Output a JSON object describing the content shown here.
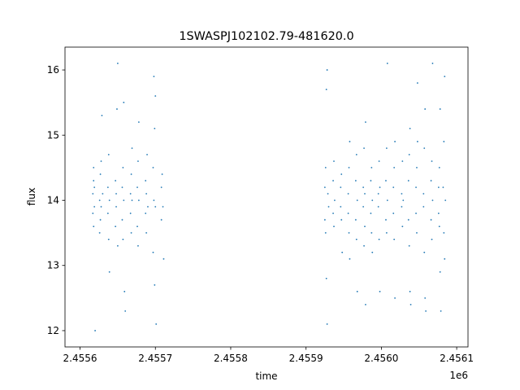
{
  "chart_data": {
    "type": "scatter",
    "title": "1SWASPJ102102.79-481620.0",
    "xlabel": "time",
    "ylabel": "flux",
    "x_offset_label": "1e6",
    "xlim": [
      2455580,
      2456115
    ],
    "ylim": [
      11.75,
      16.35
    ],
    "x_ticks": [
      2455600,
      2455700,
      2455800,
      2455900,
      2456000,
      2456100
    ],
    "x_tick_labels": [
      "2.4556",
      "2.4557",
      "2.4558",
      "2.4559",
      "2.4560",
      "2.4561"
    ],
    "y_ticks": [
      12,
      13,
      14,
      15,
      16
    ],
    "y_tick_labels": [
      "12",
      "13",
      "14",
      "15",
      "16"
    ],
    "grid": false,
    "marker_color": "#1f77b4",
    "series": [
      {
        "points": [
          [
            2455617,
            14.1
          ],
          [
            2455617,
            13.8
          ],
          [
            2455618,
            14.3
          ],
          [
            2455618,
            13.6
          ],
          [
            2455618,
            14.5
          ],
          [
            2455619,
            13.9
          ],
          [
            2455619,
            14.2
          ],
          [
            2455620,
            12.0
          ],
          [
            2455626,
            14.0
          ],
          [
            2455626,
            13.5
          ],
          [
            2455627,
            14.4
          ],
          [
            2455627,
            13.7
          ],
          [
            2455628,
            14.6
          ],
          [
            2455628,
            13.9
          ],
          [
            2455629,
            15.3
          ],
          [
            2455630,
            14.1
          ],
          [
            2455637,
            13.8
          ],
          [
            2455637,
            14.2
          ],
          [
            2455638,
            13.4
          ],
          [
            2455638,
            14.7
          ],
          [
            2455639,
            14.0
          ],
          [
            2455639,
            12.9
          ],
          [
            2455647,
            14.3
          ],
          [
            2455647,
            13.6
          ],
          [
            2455648,
            14.1
          ],
          [
            2455648,
            13.9
          ],
          [
            2455649,
            15.4
          ],
          [
            2455650,
            16.1
          ],
          [
            2455650,
            13.3
          ],
          [
            2455656,
            14.2
          ],
          [
            2455656,
            13.7
          ],
          [
            2455657,
            14.5
          ],
          [
            2455657,
            13.4
          ],
          [
            2455658,
            15.5
          ],
          [
            2455658,
            14.0
          ],
          [
            2455659,
            12.6
          ],
          [
            2455660,
            12.3
          ],
          [
            2455667,
            14.1
          ],
          [
            2455667,
            13.8
          ],
          [
            2455668,
            14.4
          ],
          [
            2455668,
            13.5
          ],
          [
            2455669,
            14.8
          ],
          [
            2455669,
            14.0
          ],
          [
            2455676,
            14.2
          ],
          [
            2455676,
            13.6
          ],
          [
            2455677,
            14.6
          ],
          [
            2455677,
            13.3
          ],
          [
            2455678,
            15.2
          ],
          [
            2455678,
            14.0
          ],
          [
            2455687,
            14.3
          ],
          [
            2455687,
            13.8
          ],
          [
            2455688,
            14.1
          ],
          [
            2455688,
            13.5
          ],
          [
            2455689,
            14.7
          ],
          [
            2455690,
            13.9
          ],
          [
            2455697,
            14.5
          ],
          [
            2455697,
            13.2
          ],
          [
            2455698,
            15.9
          ],
          [
            2455698,
            14.0
          ],
          [
            2455699,
            15.1
          ],
          [
            2455699,
            12.7
          ],
          [
            2455700,
            13.9
          ],
          [
            2455700,
            15.6
          ],
          [
            2455701,
            12.1
          ],
          [
            2455708,
            14.2
          ],
          [
            2455708,
            13.7
          ],
          [
            2455709,
            14.4
          ],
          [
            2455710,
            13.9
          ],
          [
            2455711,
            13.1
          ],
          [
            2455925,
            14.2
          ],
          [
            2455925,
            13.7
          ],
          [
            2455926,
            14.5
          ],
          [
            2455926,
            13.5
          ],
          [
            2455927,
            15.7
          ],
          [
            2455927,
            12.8
          ],
          [
            2455928,
            16.0
          ],
          [
            2455928,
            12.1
          ],
          [
            2455929,
            14.1
          ],
          [
            2455930,
            13.9
          ],
          [
            2455936,
            14.3
          ],
          [
            2455936,
            13.8
          ],
          [
            2455937,
            14.6
          ],
          [
            2455937,
            13.6
          ],
          [
            2455938,
            14.0
          ],
          [
            2455946,
            14.2
          ],
          [
            2455946,
            13.9
          ],
          [
            2455947,
            14.4
          ],
          [
            2455947,
            13.7
          ],
          [
            2455948,
            13.2
          ],
          [
            2455956,
            14.1
          ],
          [
            2455956,
            13.8
          ],
          [
            2455957,
            14.5
          ],
          [
            2455957,
            13.5
          ],
          [
            2455958,
            14.9
          ],
          [
            2455958,
            13.1
          ],
          [
            2455966,
            14.3
          ],
          [
            2455966,
            13.7
          ],
          [
            2455967,
            14.7
          ],
          [
            2455967,
            13.4
          ],
          [
            2455968,
            14.0
          ],
          [
            2455968,
            12.6
          ],
          [
            2455976,
            14.2
          ],
          [
            2455976,
            13.9
          ],
          [
            2455977,
            14.8
          ],
          [
            2455977,
            13.3
          ],
          [
            2455978,
            14.1
          ],
          [
            2455978,
            13.6
          ],
          [
            2455979,
            12.4
          ],
          [
            2455979,
            15.2
          ],
          [
            2455986,
            14.3
          ],
          [
            2455986,
            13.8
          ],
          [
            2455987,
            14.5
          ],
          [
            2455987,
            13.5
          ],
          [
            2455988,
            14.0
          ],
          [
            2455988,
            13.2
          ],
          [
            2455996,
            14.1
          ],
          [
            2455996,
            13.9
          ],
          [
            2455997,
            14.6
          ],
          [
            2455997,
            13.4
          ],
          [
            2455998,
            14.2
          ],
          [
            2455998,
            12.6
          ],
          [
            2456006,
            14.3
          ],
          [
            2456006,
            13.7
          ],
          [
            2456007,
            14.8
          ],
          [
            2456007,
            13.5
          ],
          [
            2456008,
            14.0
          ],
          [
            2456008,
            16.1
          ],
          [
            2456016,
            14.2
          ],
          [
            2456016,
            13.8
          ],
          [
            2456017,
            14.5
          ],
          [
            2456017,
            13.4
          ],
          [
            2456018,
            14.9
          ],
          [
            2456018,
            12.5
          ],
          [
            2456027,
            14.1
          ],
          [
            2456027,
            13.9
          ],
          [
            2456028,
            14.6
          ],
          [
            2456028,
            13.6
          ],
          [
            2456029,
            14.0
          ],
          [
            2456036,
            14.3
          ],
          [
            2456036,
            13.7
          ],
          [
            2456037,
            14.7
          ],
          [
            2456037,
            13.3
          ],
          [
            2456038,
            15.1
          ],
          [
            2456038,
            12.6
          ],
          [
            2456039,
            12.4
          ],
          [
            2456046,
            14.2
          ],
          [
            2456046,
            13.8
          ],
          [
            2456047,
            14.5
          ],
          [
            2456047,
            13.5
          ],
          [
            2456048,
            14.9
          ],
          [
            2456048,
            15.8
          ],
          [
            2456056,
            14.1
          ],
          [
            2456056,
            13.9
          ],
          [
            2456057,
            14.8
          ],
          [
            2456057,
            13.2
          ],
          [
            2456058,
            12.5
          ],
          [
            2456058,
            15.4
          ],
          [
            2456059,
            12.3
          ],
          [
            2456066,
            14.3
          ],
          [
            2456066,
            13.7
          ],
          [
            2456067,
            14.6
          ],
          [
            2456067,
            13.4
          ],
          [
            2456068,
            14.0
          ],
          [
            2456068,
            16.1
          ],
          [
            2456076,
            14.2
          ],
          [
            2456076,
            13.8
          ],
          [
            2456077,
            14.5
          ],
          [
            2456077,
            13.6
          ],
          [
            2456078,
            15.4
          ],
          [
            2456078,
            12.9
          ],
          [
            2456079,
            12.3
          ],
          [
            2456082,
            14.2
          ],
          [
            2456083,
            13.5
          ],
          [
            2456083,
            14.9
          ],
          [
            2456084,
            13.1
          ],
          [
            2456084,
            15.9
          ],
          [
            2456085,
            14.0
          ]
        ]
      }
    ]
  }
}
